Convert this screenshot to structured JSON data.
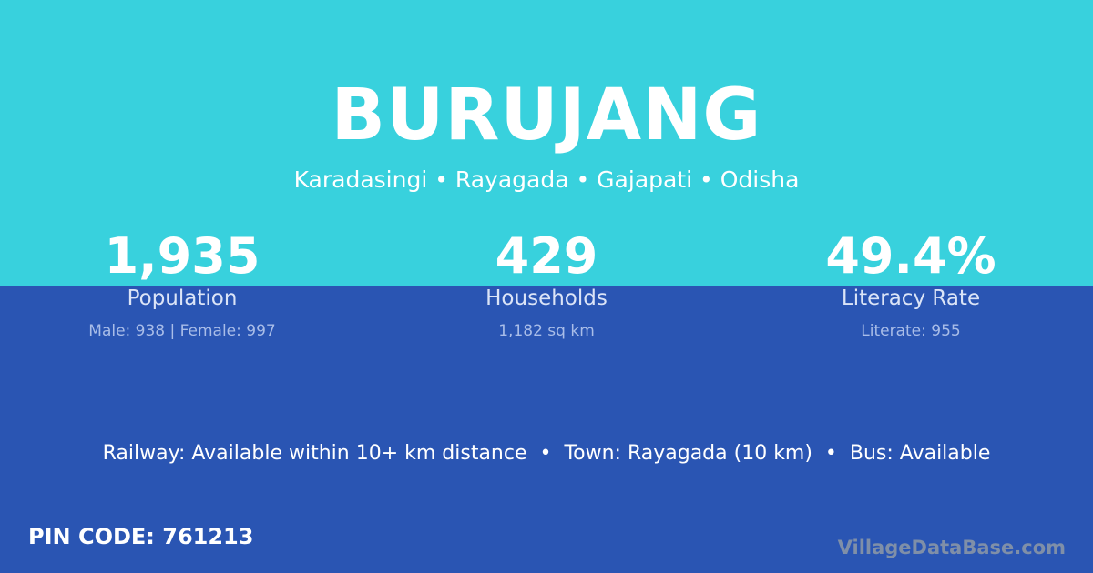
{
  "colors": {
    "top_bg": "#38d1dd",
    "bottom_bg": "#2a55b3",
    "brand": "#7f8fa8"
  },
  "title": "BURUJANG",
  "location": "Karadasingi • Rayagada • Gajapati • Odisha",
  "stats": [
    {
      "value": "1,935",
      "label": "Population",
      "detail": "Male: 938 | Female: 997"
    },
    {
      "value": "429",
      "label": "Households",
      "detail": "1,182 sq km"
    },
    {
      "value": "49.4%",
      "label": "Literacy Rate",
      "detail": "Literate: 955"
    }
  ],
  "amenities": "Railway: Available within 10+ km distance  •  Town: Rayagada (10 km)  •  Bus: Available",
  "pin_code": "PIN CODE: 761213",
  "brand": "VillageDataBase.com"
}
